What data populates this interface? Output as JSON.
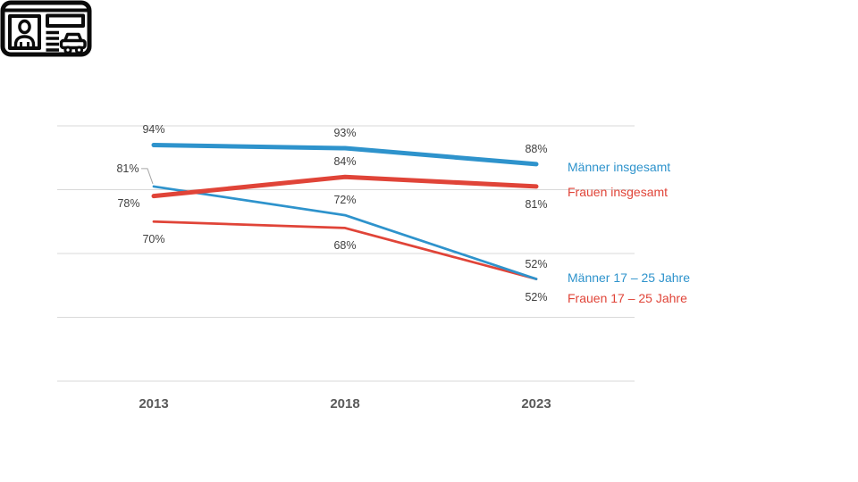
{
  "chart_data": {
    "type": "line",
    "title": "",
    "xlabel": "",
    "ylabel": "",
    "categories": [
      "2013",
      "2018",
      "2023"
    ],
    "series": [
      {
        "name": "Männer insgesamt",
        "color": "#2E93CC",
        "weight": "thick",
        "values": [
          94,
          93,
          88
        ],
        "labels": [
          "94%",
          "93%",
          "88%"
        ]
      },
      {
        "name": "Frauen insgesamt",
        "color": "#E04438",
        "weight": "thick",
        "values": [
          78,
          84,
          81
        ],
        "labels": [
          "78%",
          "84%",
          "81%"
        ]
      },
      {
        "name": "Männer 17 – 25 Jahre",
        "color": "#2E93CC",
        "weight": "thin",
        "values": [
          81,
          72,
          52
        ],
        "labels": [
          "81%",
          "72%",
          "52%"
        ]
      },
      {
        "name": "Frauen 17 – 25 Jahre",
        "color": "#E04438",
        "weight": "thin",
        "values": [
          70,
          68,
          52
        ],
        "labels": [
          "70%",
          "68%",
          "52%"
        ]
      }
    ],
    "ylim": [
      20,
      100
    ],
    "grid": true,
    "gridline_values": [
      100,
      80,
      60,
      40,
      20
    ],
    "legend_position": "right-of-line-ends",
    "value_format": "percent"
  },
  "icon": {
    "type": "drivers-license"
  },
  "styles": {
    "background": "#FFFFFF",
    "grid_color": "#D9D9D9",
    "data_label_color": "#3F3F3F",
    "axis_label_color": "#595959",
    "leader_color": "#A6A6A6",
    "icon_color": "#0B0B0B"
  }
}
